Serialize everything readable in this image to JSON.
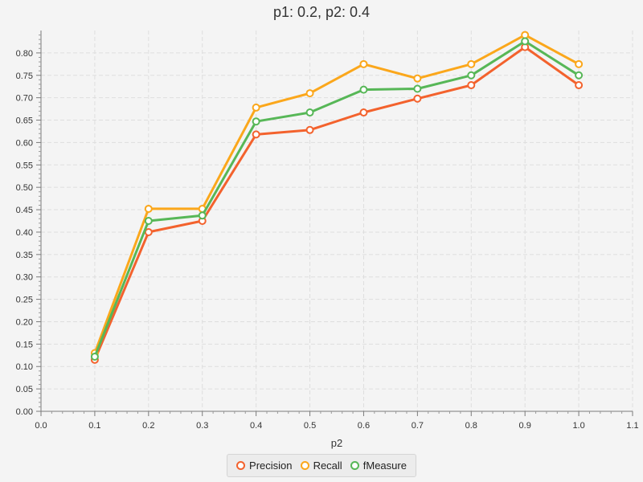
{
  "chart_data": {
    "type": "line",
    "title": "p1: 0.2, p2: 0.4",
    "xlabel": "p2",
    "ylabel": "",
    "xlim": [
      0.0,
      1.1
    ],
    "ylim": [
      0.0,
      0.85
    ],
    "x_ticks": [
      "0.0",
      "0.1",
      "0.2",
      "0.3",
      "0.4",
      "0.5",
      "0.6",
      "0.7",
      "0.8",
      "0.9",
      "1.0",
      "1.1"
    ],
    "y_ticks": [
      "0.00",
      "0.05",
      "0.10",
      "0.15",
      "0.20",
      "0.25",
      "0.30",
      "0.35",
      "0.40",
      "0.45",
      "0.50",
      "0.55",
      "0.60",
      "0.65",
      "0.70",
      "0.75",
      "0.80"
    ],
    "grid": true,
    "legend_position": "bottom",
    "x": [
      0.1,
      0.2,
      0.3,
      0.4,
      0.5,
      0.6,
      0.7,
      0.8,
      0.9,
      1.0
    ],
    "series": [
      {
        "name": "Precision",
        "color": "#f3622d",
        "values": [
          0.115,
          0.4,
          0.425,
          0.618,
          0.628,
          0.667,
          0.698,
          0.728,
          0.813,
          0.728
        ]
      },
      {
        "name": "Recall",
        "color": "#fba71b",
        "values": [
          0.13,
          0.452,
          0.452,
          0.678,
          0.71,
          0.775,
          0.743,
          0.775,
          0.84,
          0.775
        ]
      },
      {
        "name": "fMeasure",
        "color": "#57b757",
        "values": [
          0.122,
          0.425,
          0.437,
          0.647,
          0.667,
          0.718,
          0.72,
          0.75,
          0.826,
          0.75
        ]
      }
    ]
  }
}
